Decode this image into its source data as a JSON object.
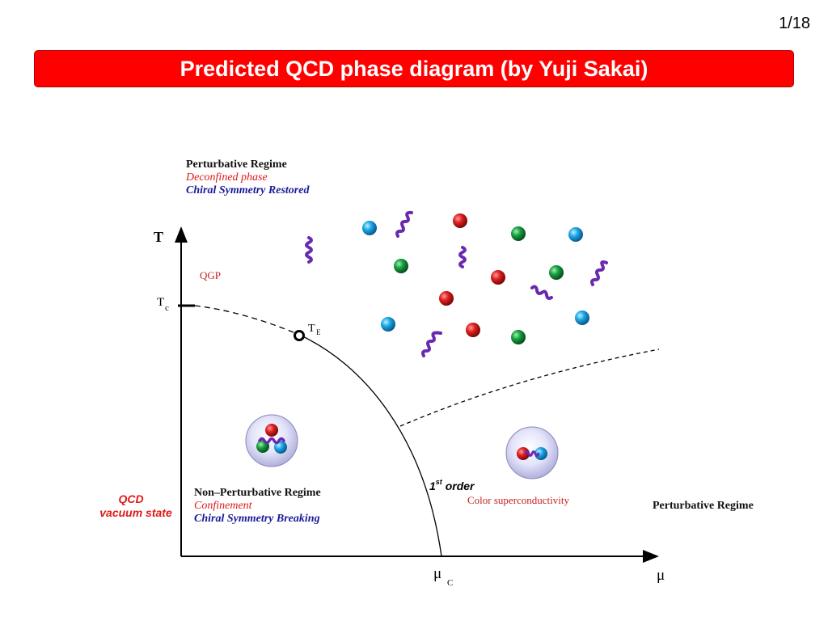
{
  "slide": {
    "page_number": "1/18",
    "title": "Predicted QCD phase diagram (by Yuji Sakai)"
  },
  "diagram": {
    "top_regime": {
      "heading": "Perturbative Regime",
      "line2": "Deconfined phase",
      "line3": "Chiral Symmetry Restored"
    },
    "axis_t": "T",
    "tc_label": "T",
    "tc_sub": "c",
    "qgp": "QGP",
    "te_label": "T",
    "te_sub": "E",
    "vacuum_line1": "QCD",
    "vacuum_line2": "vacuum state",
    "bottom_regime": {
      "heading": "Non–Perturbative Regime",
      "line2": "Confinement",
      "line3": "Chiral Symmetry Breaking"
    },
    "first_order_prefix": "1",
    "first_order_sup": "st",
    "first_order_suffix": " order",
    "color_sc": "Color superconductivity",
    "right_regime": "Perturbative Regime",
    "mu_c_label": "μ",
    "mu_c_sub": "C",
    "axis_mu": "μ",
    "colors": {
      "red_quark": "#e02020",
      "green_quark": "#18a040",
      "blue_quark": "#1aa8e8",
      "gluon": "#6a2ab0",
      "red_text": "#e01818",
      "blue_text": "#1a1a9a",
      "title_bg": "#ff0000"
    }
  }
}
